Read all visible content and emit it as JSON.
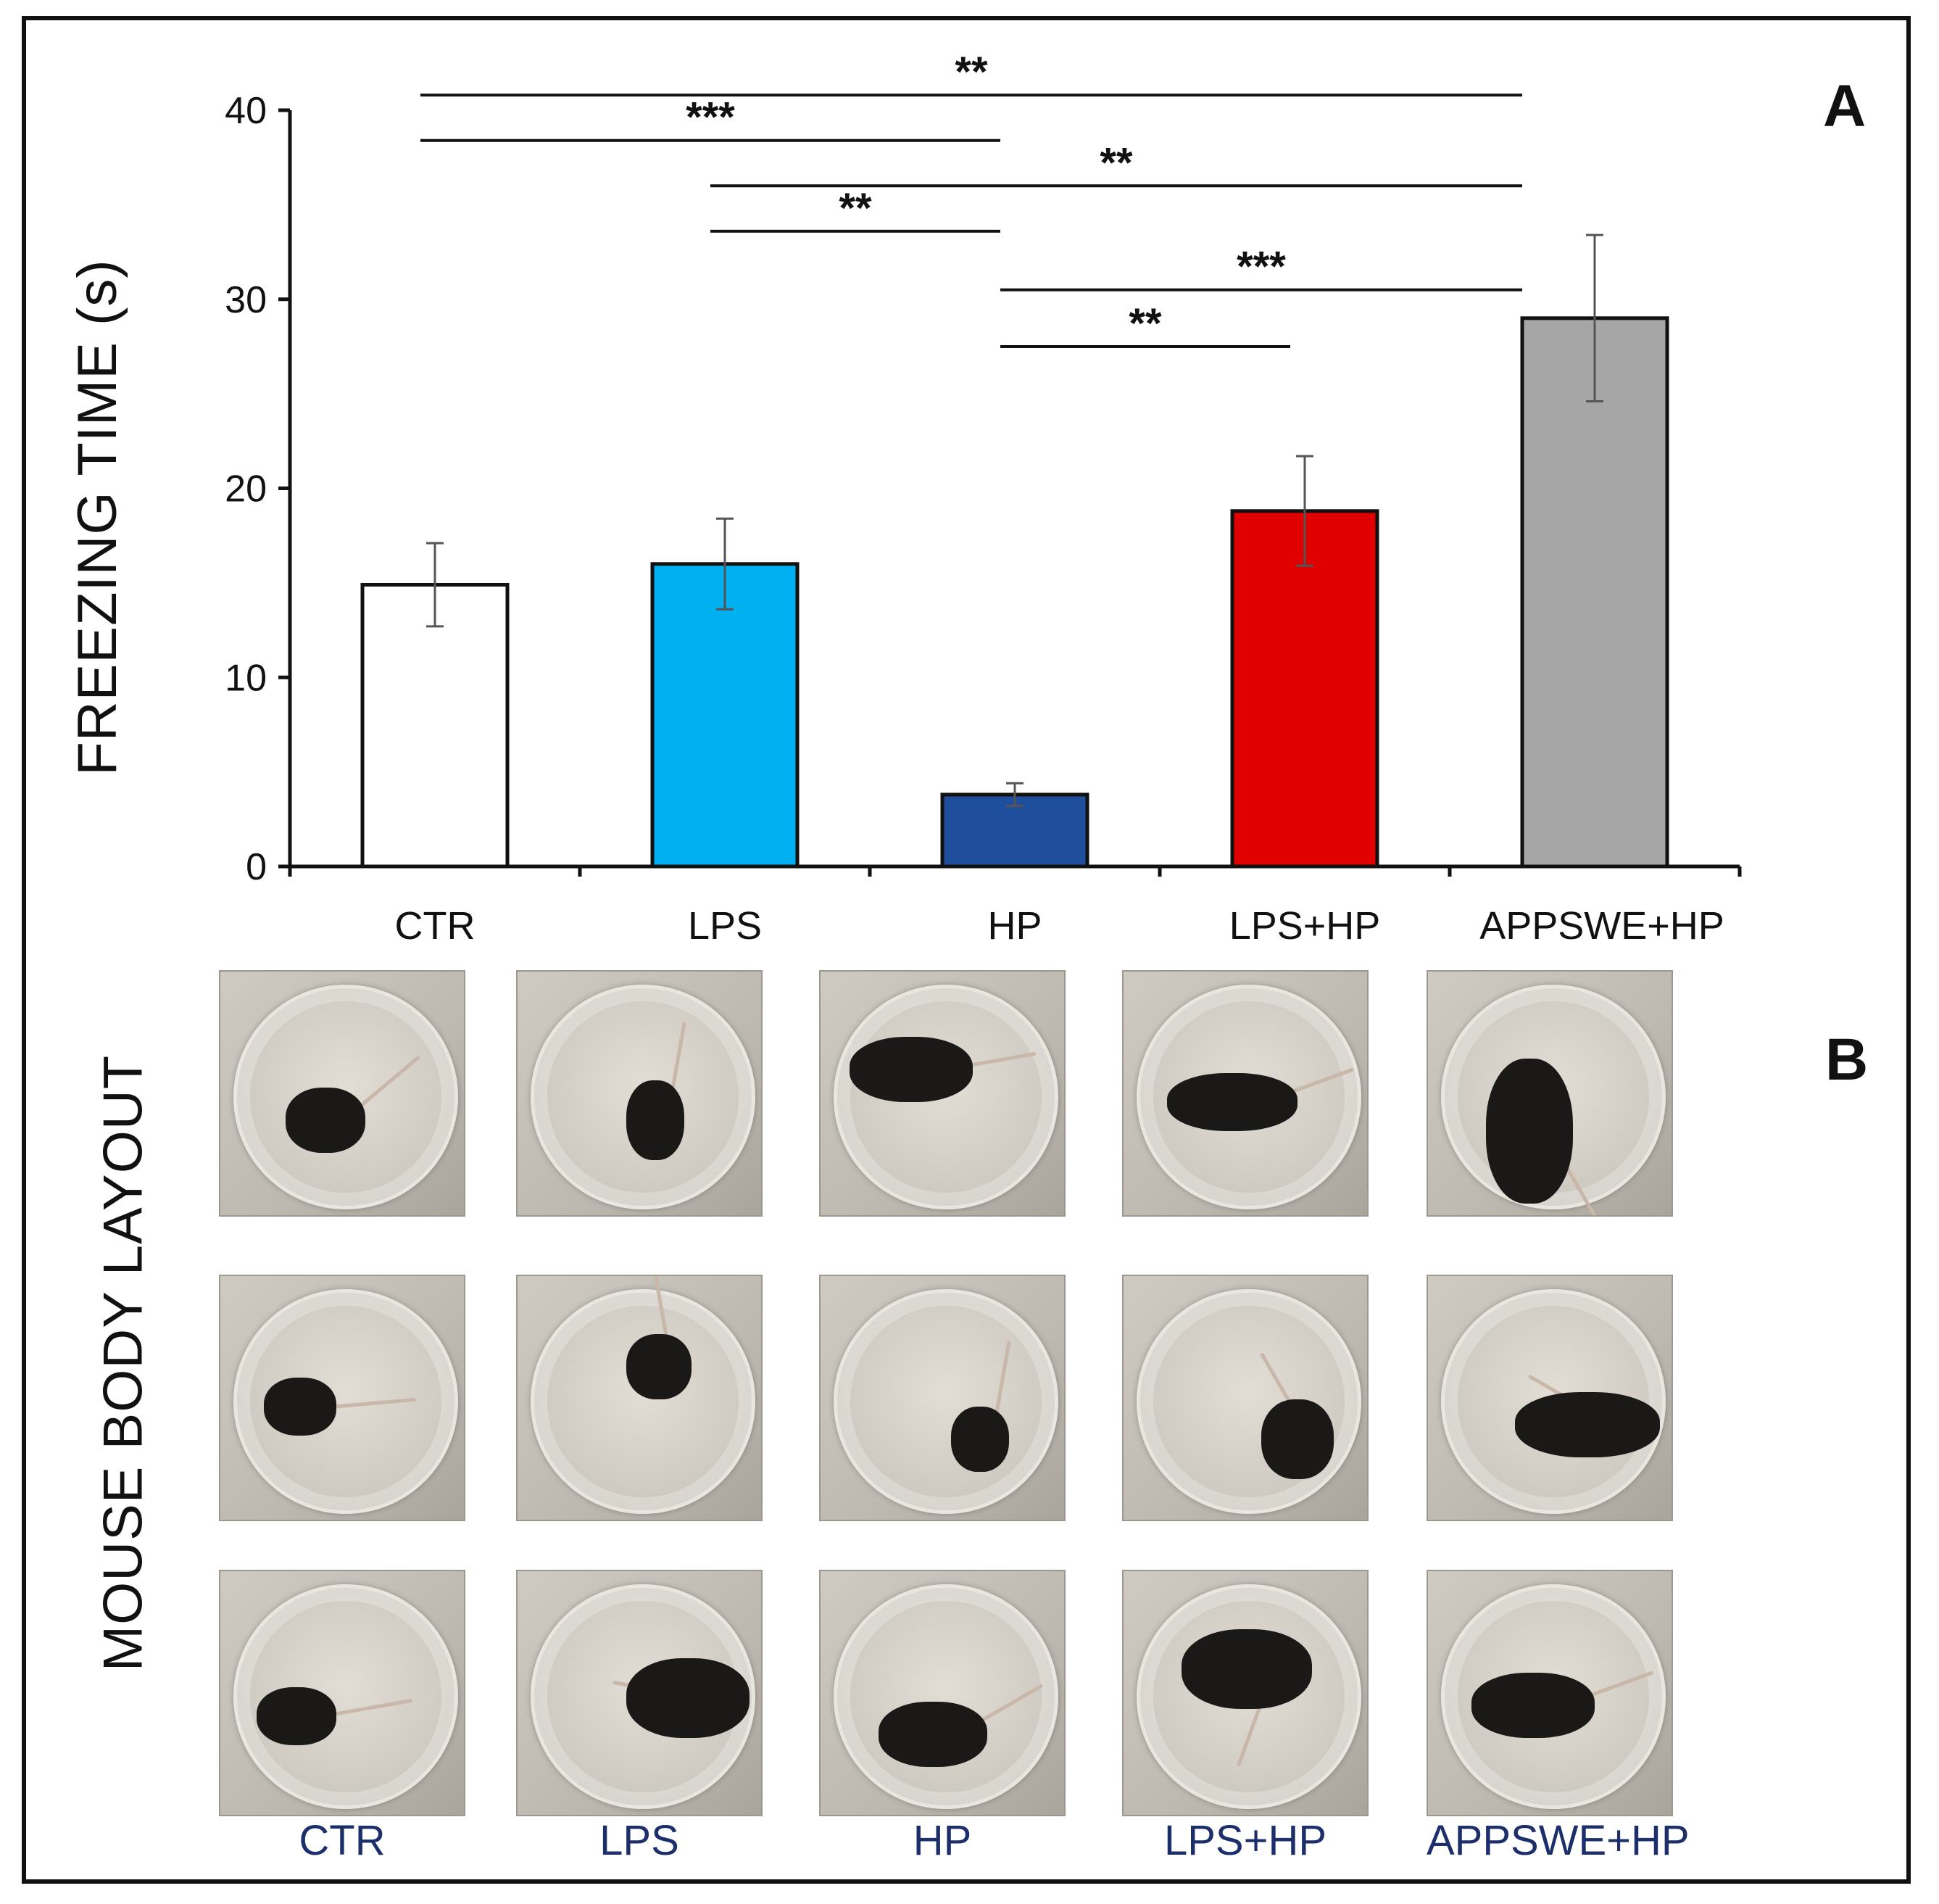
{
  "chart_data": {
    "type": "bar",
    "panel_label": "A",
    "ylabel": "FREEZING TIME  (s)",
    "xlabel": "",
    "ylim": [
      0,
      40
    ],
    "yticks": [
      0,
      10,
      20,
      30,
      40
    ],
    "categories": [
      "CTR",
      "LPS",
      "HP",
      "LPS+HP",
      "APPSWE+HP"
    ],
    "values": [
      14.9,
      16.0,
      3.8,
      18.8,
      29.0
    ],
    "errors": [
      2.2,
      2.4,
      0.6,
      2.9,
      4.4
    ],
    "colors": [
      "#ffffff",
      "#00b0f0",
      "#1f4e9c",
      "#e00000",
      "#a6a6a6"
    ],
    "significance": [
      {
        "from": "CTR",
        "to": "APPSWE+HP",
        "label": "**",
        "y": 40.8
      },
      {
        "from": "CTR",
        "to": "HP",
        "label": "***",
        "y": 38.4
      },
      {
        "from": "LPS",
        "to": "APPSWE+HP",
        "label": "**",
        "y": 36.0
      },
      {
        "from": "LPS",
        "to": "HP",
        "label": "**",
        "y": 33.6
      },
      {
        "from": "HP",
        "to": "APPSWE+HP",
        "label": "***",
        "y": 30.5
      },
      {
        "from": "HP",
        "to": "LPS+HP",
        "label": "**",
        "y": 27.5
      }
    ]
  },
  "panel_b": {
    "panel_label": "B",
    "ylabel": "MOUSE BODY LAYOUT",
    "columns": [
      "CTR",
      "LPS",
      "HP",
      "LPS+HP",
      "APPSWE+HP"
    ],
    "rows": 3
  }
}
